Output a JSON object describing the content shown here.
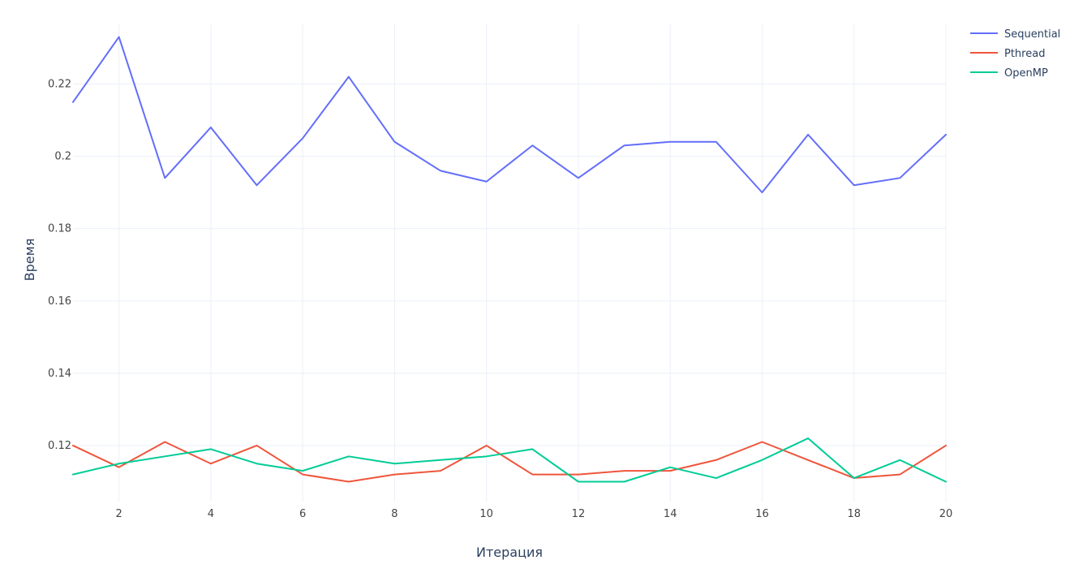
{
  "chart_data": {
    "type": "line",
    "title": "",
    "xlabel": "Итерация",
    "ylabel": "Время",
    "xlim": [
      1,
      20
    ],
    "ylim": [
      0.1045,
      0.2365
    ],
    "x_ticks": [
      2,
      4,
      6,
      8,
      10,
      12,
      14,
      16,
      18,
      20
    ],
    "y_ticks": [
      0.12,
      0.14,
      0.16,
      0.18,
      0.2,
      0.22
    ],
    "y_tick_labels": [
      "0.12",
      "0.14",
      "0.16",
      "0.18",
      "0.2",
      "0.22"
    ],
    "grid": true,
    "legend_position": "top-right",
    "x": [
      1,
      2,
      3,
      4,
      5,
      6,
      7,
      8,
      9,
      10,
      11,
      12,
      13,
      14,
      15,
      16,
      17,
      18,
      19,
      20
    ],
    "series": [
      {
        "name": "Sequential",
        "color": "#636efa",
        "values": [
          0.215,
          0.233,
          0.194,
          0.208,
          0.192,
          0.205,
          0.222,
          0.204,
          0.196,
          0.193,
          0.203,
          0.194,
          0.203,
          0.204,
          0.204,
          0.19,
          0.206,
          0.192,
          0.194,
          0.206
        ]
      },
      {
        "name": "Pthread",
        "color": "#ef553b",
        "values": [
          0.12,
          0.114,
          0.121,
          0.115,
          0.12,
          0.112,
          0.11,
          0.112,
          0.113,
          0.12,
          0.112,
          0.112,
          0.113,
          0.113,
          0.116,
          0.121,
          0.116,
          0.111,
          0.112,
          0.12
        ]
      },
      {
        "name": "OpenMP",
        "color": "#00cc96",
        "values": [
          0.112,
          0.115,
          0.117,
          0.119,
          0.115,
          0.113,
          0.117,
          0.115,
          0.116,
          0.117,
          0.119,
          0.11,
          0.11,
          0.114,
          0.111,
          0.116,
          0.122,
          0.111,
          0.116,
          0.11
        ]
      }
    ]
  }
}
